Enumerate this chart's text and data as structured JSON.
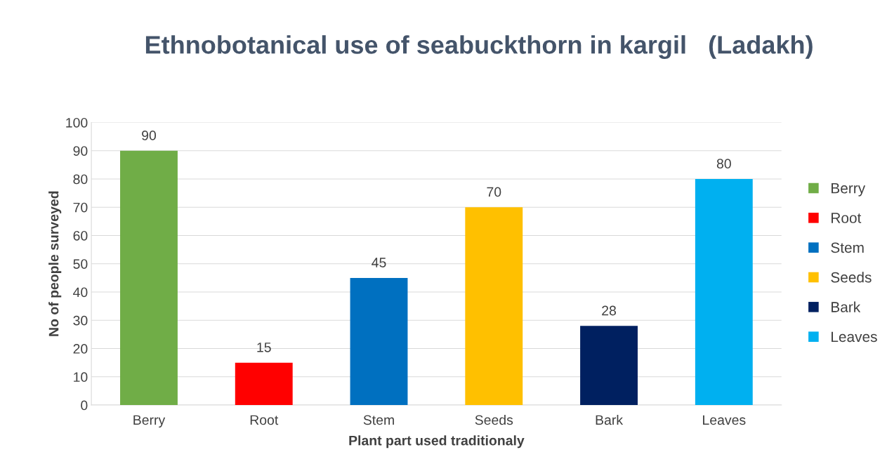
{
  "chart_data": {
    "type": "bar",
    "title": "Ethnobotanical use of seabuckthorn in kargil   (Ladakh)",
    "xlabel": "Plant part used traditionaly",
    "ylabel": "No of people surveyed",
    "categories": [
      "Berry",
      "Root",
      "Stem",
      "Seeds",
      "Bark",
      "Leaves"
    ],
    "series": [
      {
        "name": "Berry",
        "color": "#70ad47",
        "values": [
          90,
          null,
          null,
          null,
          null,
          null
        ]
      },
      {
        "name": "Root",
        "color": "#ff0000",
        "values": [
          null,
          15,
          null,
          null,
          null,
          null
        ]
      },
      {
        "name": "Stem",
        "color": "#0070c0",
        "values": [
          null,
          null,
          45,
          null,
          null,
          null
        ]
      },
      {
        "name": "Seeds",
        "color": "#ffc000",
        "values": [
          null,
          null,
          null,
          70,
          null,
          null
        ]
      },
      {
        "name": "Bark",
        "color": "#002060",
        "values": [
          null,
          null,
          null,
          null,
          28,
          null
        ]
      },
      {
        "name": "Leaves",
        "color": "#00b0f0",
        "values": [
          null,
          null,
          null,
          null,
          null,
          80
        ]
      }
    ],
    "ylim": [
      0,
      100
    ],
    "yticks": [
      0,
      10,
      20,
      30,
      40,
      50,
      60,
      70,
      80,
      90,
      100
    ],
    "grid": "y",
    "legend": "right",
    "data_labels": true
  }
}
